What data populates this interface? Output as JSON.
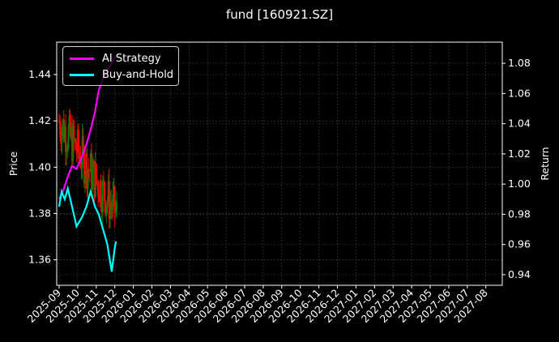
{
  "chart_data": {
    "type": "line",
    "title": "fund [160921.SZ]",
    "xlabel": "",
    "ylabel": "Price",
    "y2label": "Return",
    "ylim": [
      1.349,
      1.454
    ],
    "y2lim": [
      0.933,
      1.094
    ],
    "x_ticks": [
      "2025-09",
      "2025-10",
      "2025-11",
      "2025-12",
      "2026-01",
      "2026-02",
      "2026-03",
      "2026-04",
      "2026-05",
      "2026-06",
      "2026-07",
      "2026-08",
      "2026-09",
      "2026-10",
      "2026-11",
      "2026-12",
      "2027-01",
      "2027-02",
      "2027-03",
      "2027-04",
      "2027-05",
      "2027-06",
      "2027-07",
      "2027-08"
    ],
    "y_ticks": [
      "1.36",
      "1.38",
      "1.40",
      "1.42",
      "1.44"
    ],
    "y2_ticks": [
      "0.94",
      "0.96",
      "0.98",
      "1.00",
      "1.02",
      "1.04",
      "1.06",
      "1.08"
    ],
    "grid": true,
    "legend_position": "upper left",
    "series": [
      {
        "name": "AI Strategy",
        "color": "#ff00ff",
        "axis": "right",
        "x": [
          "2025-09-01",
          "2025-09-08",
          "2025-09-15",
          "2025-09-22",
          "2025-09-29",
          "2025-10-08",
          "2025-10-15",
          "2025-10-22",
          "2025-10-29",
          "2025-11-05",
          "2025-11-12",
          "2025-11-19",
          "2025-11-26",
          "2025-12-03"
        ],
        "values": [
          0.99,
          0.996,
          1.005,
          1.012,
          1.01,
          1.018,
          1.026,
          1.036,
          1.048,
          1.062,
          1.07,
          1.076,
          1.08,
          1.085
        ]
      },
      {
        "name": "Buy-and-Hold",
        "color": "#00ffff",
        "axis": "right",
        "x": [
          "2025-09-01",
          "2025-09-05",
          "2025-09-10",
          "2025-09-15",
          "2025-09-22",
          "2025-09-29",
          "2025-10-08",
          "2025-10-15",
          "2025-10-22",
          "2025-10-29",
          "2025-11-05",
          "2025-11-12",
          "2025-11-19",
          "2025-11-26",
          "2025-12-01",
          "2025-12-03"
        ],
        "values": [
          0.985,
          0.995,
          0.99,
          0.997,
          0.985,
          0.972,
          0.978,
          0.985,
          0.995,
          0.985,
          0.98,
          0.97,
          0.96,
          0.942,
          0.958,
          0.962
        ]
      },
      {
        "name": "Price (candles)",
        "color_up": "#008000",
        "color_down": "#ff0000",
        "axis": "left",
        "x": [
          "2025-09-01",
          "2025-12-05"
        ],
        "range": [
          1.35,
          1.445
        ]
      }
    ]
  },
  "legend": {
    "items": [
      {
        "label": "AI Strategy",
        "color": "#ff00ff"
      },
      {
        "label": "Buy-and-Hold",
        "color": "#00ffff"
      }
    ]
  }
}
